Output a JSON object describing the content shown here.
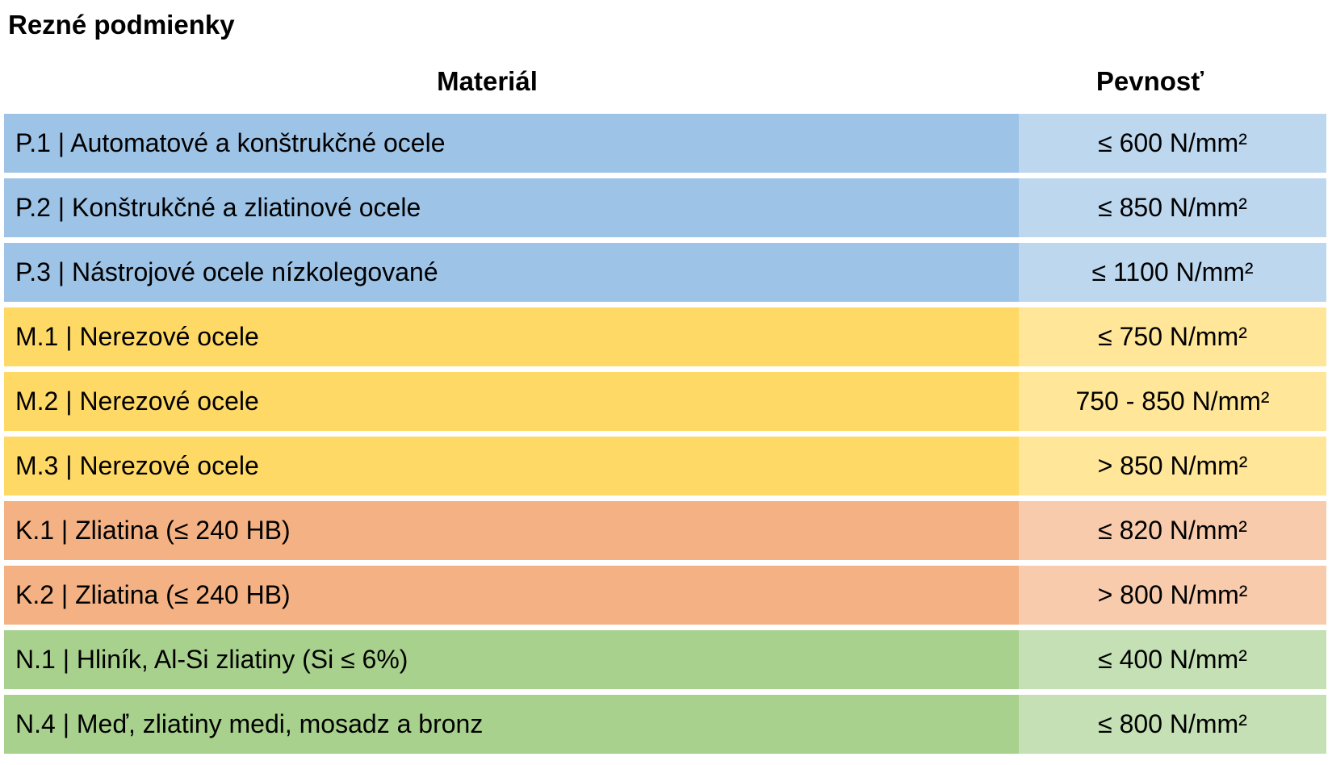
{
  "title": "Rezné podmienky",
  "table": {
    "headers": {
      "material": "Materiál",
      "strength": "Pevnosť"
    },
    "rows": [
      {
        "group": "P",
        "label": "P.1 | Automatové a konštrukčné ocele",
        "strength": "≤ 600 N/mm²"
      },
      {
        "group": "P",
        "label": "P.2 | Konštrukčné a zliatinové ocele",
        "strength": "≤ 850 N/mm²"
      },
      {
        "group": "P",
        "label": "P.3 | Nástrojové ocele nízkolegované",
        "strength": "≤ 1100 N/mm²"
      },
      {
        "group": "M",
        "label": "M.1 | Nerezové ocele",
        "strength": "≤ 750 N/mm²"
      },
      {
        "group": "M",
        "label": "M.2 | Nerezové ocele",
        "strength": "750 - 850 N/mm²"
      },
      {
        "group": "M",
        "label": "M.3 | Nerezové ocele",
        "strength": "> 850 N/mm²"
      },
      {
        "group": "K",
        "label": "K.1 | Zliatina (≤ 240 HB)",
        "strength": "≤ 820 N/mm²"
      },
      {
        "group": "K",
        "label": "K.2 | Zliatina (≤ 240 HB)",
        "strength": "> 800 N/mm²"
      },
      {
        "group": "N",
        "label": "N.1 | Hliník, Al-Si zliatiny (Si ≤ 6%)",
        "strength": "≤ 400 N/mm²"
      },
      {
        "group": "N",
        "label": "N.4 | Meď, zliatiny medi, mosadz a bronz",
        "strength": "≤ 800 N/mm²"
      }
    ]
  },
  "colors": {
    "P": {
      "dark": "#9DC3E6",
      "light": "#BDD7EE"
    },
    "M": {
      "dark": "#FFD966",
      "light": "#FFE699"
    },
    "K": {
      "dark": "#F4B183",
      "light": "#F8CBAD"
    },
    "N": {
      "dark": "#A9D18E",
      "light": "#C5E0B4"
    },
    "text": "#000000",
    "background": "#FFFFFF"
  }
}
